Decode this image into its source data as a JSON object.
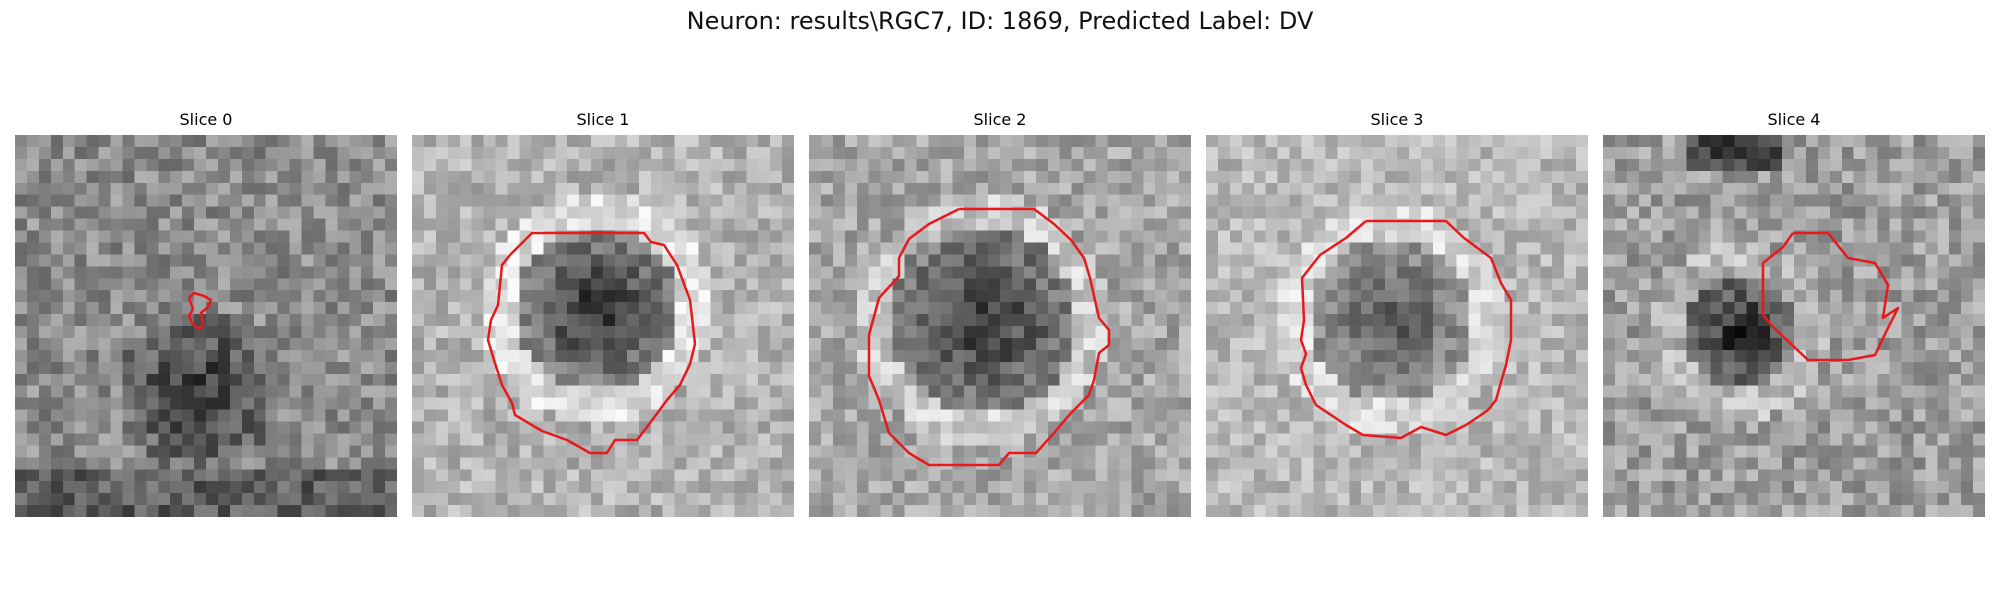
{
  "figure": {
    "title": "Neuron: results\\RGC7, ID: 1869, Predicted Label: DV"
  },
  "colors": {
    "contour": "#e8191c",
    "background": "#ffffff"
  },
  "panels": [
    {
      "title": "Slice 0"
    },
    {
      "title": "Slice 1"
    },
    {
      "title": "Slice 2"
    },
    {
      "title": "Slice 3"
    },
    {
      "title": "Slice 4"
    }
  ]
}
